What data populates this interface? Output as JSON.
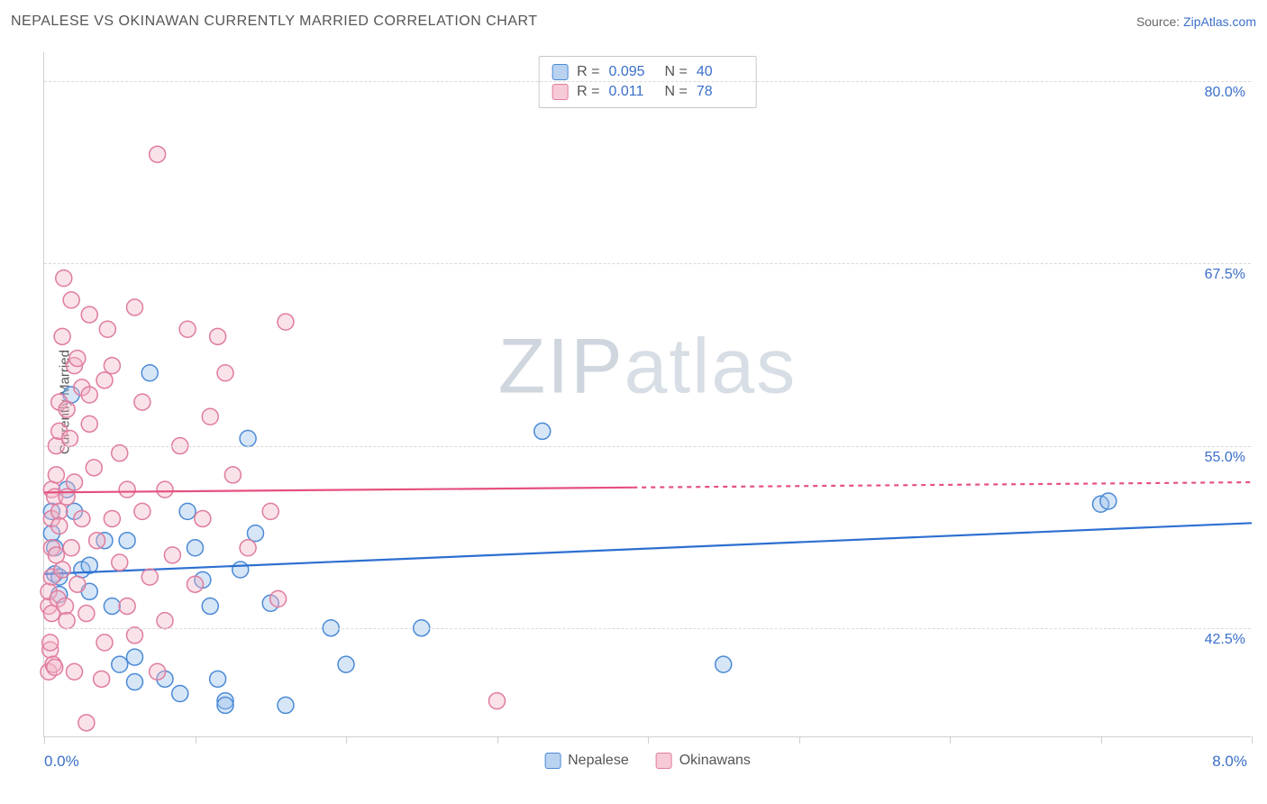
{
  "header": {
    "title": "NEPALESE VS OKINAWAN CURRENTLY MARRIED CORRELATION CHART",
    "source_prefix": "Source: ",
    "source_name": "ZipAtlas.com"
  },
  "watermark": "ZIPatlas",
  "chart": {
    "type": "scatter",
    "background_color": "#ffffff",
    "grid_color": "#d9d9d9",
    "axis_color": "#cfcfcf",
    "xlim": [
      0.0,
      8.0
    ],
    "ylim": [
      35.0,
      82.0
    ],
    "x_ticks": [
      0.0,
      1.0,
      2.0,
      3.0,
      4.0,
      5.0,
      6.0,
      7.0,
      8.0
    ],
    "y_gridlines": [
      42.5,
      55.0,
      67.5,
      80.0
    ],
    "y_tick_labels": [
      "42.5%",
      "55.0%",
      "67.5%",
      "80.0%"
    ],
    "y_axis_title": "Currently Married",
    "x_min_label": "0.0%",
    "x_max_label": "8.0%",
    "marker_radius": 9,
    "marker_stroke_width": 1.5,
    "marker_fill_opacity": 0.4,
    "trend_line_width": 2.2,
    "series": [
      {
        "key": "nepalese",
        "label": "Nepalese",
        "color_stroke": "#4b8ad6",
        "color_fill": "#9bc1eb",
        "trend_color": "#2d6fd1",
        "stats": {
          "R": "0.095",
          "N": "40"
        },
        "trend": {
          "x1": 0.0,
          "y1": 46.2,
          "x2": 8.0,
          "y2": 49.7,
          "solid_until_x": 8.0
        },
        "points": [
          [
            0.05,
            49.0
          ],
          [
            0.05,
            50.5
          ],
          [
            0.07,
            48.0
          ],
          [
            0.07,
            46.2
          ],
          [
            0.1,
            46.0
          ],
          [
            0.1,
            44.8
          ],
          [
            0.15,
            52.0
          ],
          [
            0.18,
            58.5
          ],
          [
            0.2,
            50.5
          ],
          [
            0.25,
            46.5
          ],
          [
            0.3,
            46.8
          ],
          [
            0.3,
            45.0
          ],
          [
            0.4,
            48.5
          ],
          [
            0.45,
            44.0
          ],
          [
            0.5,
            40.0
          ],
          [
            0.55,
            48.5
          ],
          [
            0.6,
            38.8
          ],
          [
            0.6,
            40.5
          ],
          [
            0.7,
            60.0
          ],
          [
            0.8,
            39.0
          ],
          [
            0.9,
            38.0
          ],
          [
            0.95,
            50.5
          ],
          [
            1.0,
            48.0
          ],
          [
            1.05,
            45.8
          ],
          [
            1.1,
            44.0
          ],
          [
            1.15,
            39.0
          ],
          [
            1.2,
            37.5
          ],
          [
            1.2,
            37.2
          ],
          [
            1.3,
            46.5
          ],
          [
            1.35,
            55.5
          ],
          [
            1.4,
            49.0
          ],
          [
            1.5,
            44.2
          ],
          [
            1.6,
            37.2
          ],
          [
            1.9,
            42.5
          ],
          [
            2.0,
            40.0
          ],
          [
            2.5,
            42.5
          ],
          [
            3.3,
            56.0
          ],
          [
            4.5,
            40.0
          ],
          [
            7.0,
            51.0
          ],
          [
            7.05,
            51.2
          ]
        ]
      },
      {
        "key": "okinawans",
        "label": "Okinawans",
        "color_stroke": "#e07c9e",
        "color_fill": "#f3b6c9",
        "trend_color": "#e5517e",
        "stats": {
          "R": "0.011",
          "N": "78"
        },
        "trend": {
          "x1": 0.0,
          "y1": 51.8,
          "x2": 8.0,
          "y2": 52.5,
          "solid_until_x": 3.9
        },
        "points": [
          [
            0.03,
            44.0
          ],
          [
            0.03,
            45.0
          ],
          [
            0.03,
            39.5
          ],
          [
            0.04,
            41.0
          ],
          [
            0.04,
            41.5
          ],
          [
            0.05,
            43.5
          ],
          [
            0.05,
            46.0
          ],
          [
            0.05,
            48.0
          ],
          [
            0.05,
            50.0
          ],
          [
            0.05,
            52.0
          ],
          [
            0.06,
            40.0
          ],
          [
            0.07,
            39.8
          ],
          [
            0.07,
            51.5
          ],
          [
            0.08,
            47.5
          ],
          [
            0.08,
            53.0
          ],
          [
            0.08,
            55.0
          ],
          [
            0.09,
            44.5
          ],
          [
            0.1,
            50.5
          ],
          [
            0.1,
            49.5
          ],
          [
            0.1,
            56.0
          ],
          [
            0.1,
            58.0
          ],
          [
            0.12,
            62.5
          ],
          [
            0.12,
            46.5
          ],
          [
            0.13,
            66.5
          ],
          [
            0.14,
            44.0
          ],
          [
            0.15,
            57.5
          ],
          [
            0.15,
            43.0
          ],
          [
            0.15,
            51.5
          ],
          [
            0.17,
            55.5
          ],
          [
            0.18,
            65.0
          ],
          [
            0.18,
            48.0
          ],
          [
            0.2,
            60.5
          ],
          [
            0.2,
            52.5
          ],
          [
            0.2,
            39.5
          ],
          [
            0.22,
            61.0
          ],
          [
            0.22,
            45.5
          ],
          [
            0.25,
            59.0
          ],
          [
            0.25,
            50.0
          ],
          [
            0.28,
            36.0
          ],
          [
            0.28,
            43.5
          ],
          [
            0.3,
            56.5
          ],
          [
            0.3,
            64.0
          ],
          [
            0.3,
            58.5
          ],
          [
            0.33,
            53.5
          ],
          [
            0.35,
            48.5
          ],
          [
            0.38,
            39.0
          ],
          [
            0.4,
            41.5
          ],
          [
            0.4,
            59.5
          ],
          [
            0.42,
            63.0
          ],
          [
            0.45,
            50.0
          ],
          [
            0.45,
            60.5
          ],
          [
            0.5,
            54.5
          ],
          [
            0.5,
            47.0
          ],
          [
            0.55,
            52.0
          ],
          [
            0.55,
            44.0
          ],
          [
            0.6,
            64.5
          ],
          [
            0.6,
            42.0
          ],
          [
            0.65,
            58.0
          ],
          [
            0.65,
            50.5
          ],
          [
            0.7,
            46.0
          ],
          [
            0.75,
            39.5
          ],
          [
            0.75,
            75.0
          ],
          [
            0.8,
            43.0
          ],
          [
            0.8,
            52.0
          ],
          [
            0.85,
            47.5
          ],
          [
            0.9,
            55.0
          ],
          [
            0.95,
            63.0
          ],
          [
            1.0,
            45.5
          ],
          [
            1.05,
            50.0
          ],
          [
            1.1,
            57.0
          ],
          [
            1.15,
            62.5
          ],
          [
            1.2,
            60.0
          ],
          [
            1.25,
            53.0
          ],
          [
            1.35,
            48.0
          ],
          [
            1.5,
            50.5
          ],
          [
            1.55,
            44.5
          ],
          [
            1.6,
            63.5
          ],
          [
            3.0,
            37.5
          ]
        ]
      }
    ],
    "legend_top": {
      "col_labels": [
        "R =",
        "N ="
      ]
    },
    "legend_bottom_labels": [
      "Nepalese",
      "Okinawans"
    ]
  }
}
